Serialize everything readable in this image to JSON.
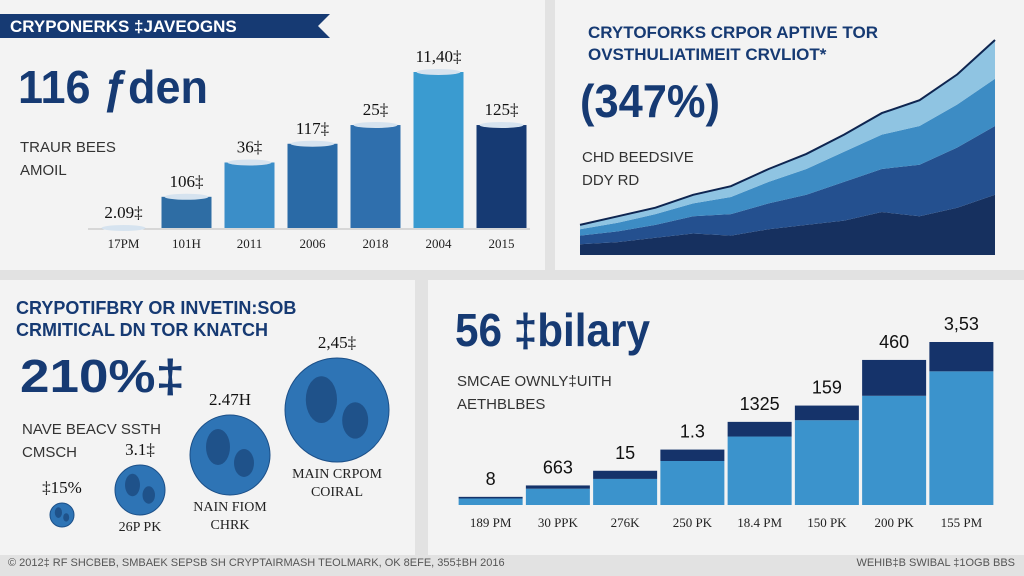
{
  "chart_data": [
    {
      "type": "bar",
      "title": [
        "CRYPONERKS ‡JAVEOGNS"
      ],
      "headline": "116 ƒden",
      "caption": [
        "TRAUR BEES",
        "AMOIL"
      ],
      "categories": [
        "17PM",
        "101H",
        "2011",
        "2006",
        "2018",
        "2004",
        "2015"
      ],
      "values": [
        0,
        20,
        42,
        54,
        66,
        100,
        66
      ],
      "annotations": [
        "2.09‡",
        "106‡",
        "36‡",
        "117‡",
        "25‡",
        "11,40‡",
        "125‡"
      ],
      "colors": [
        "#2e6da4",
        "#2e6da4",
        "#3b8ec8",
        "#2a6aa6",
        "#2f6fad",
        "#3a9bd0",
        "#163a73"
      ],
      "ylim": [
        0,
        100
      ]
    },
    {
      "type": "area",
      "title": [
        "CRYTOFORKS CRPOR APTIVE TOR",
        "OVSTHULIATIMEIT CRVLIOT*"
      ],
      "headline": "(347%)",
      "caption": [
        "CHD BEEDSIVE",
        "DDY RD"
      ],
      "series": [
        {
          "color": "#16305f",
          "values": [
            5,
            6,
            8,
            10,
            9,
            12,
            14,
            16,
            20,
            18,
            22,
            28
          ]
        },
        {
          "color": "#24508f",
          "values": [
            4,
            5,
            6,
            8,
            10,
            12,
            14,
            18,
            20,
            24,
            28,
            32
          ]
        },
        {
          "color": "#3d8cc4",
          "values": [
            3,
            4,
            5,
            6,
            8,
            10,
            12,
            14,
            16,
            18,
            20,
            22
          ]
        },
        {
          "color": "#8fc4e2",
          "values": [
            2,
            3,
            3,
            4,
            5,
            6,
            7,
            8,
            10,
            12,
            14,
            18
          ]
        }
      ],
      "ylim": [
        0,
        100
      ]
    },
    {
      "type": "bubble",
      "title": [
        "CRYPOTIFBRY OR INVETIN:SOB",
        "CRMITICAL DN TOR KNATCH"
      ],
      "headline": "210%‡",
      "caption": [
        "NAVE BEACV SSTH",
        "CMSCH"
      ],
      "values": [
        12,
        25,
        40,
        52
      ],
      "annotations": [
        "‡15%",
        "3.1‡",
        "2.47H",
        "2,45‡"
      ],
      "captions": [
        null,
        [
          "26P PK"
        ],
        [
          "NAIN FIOM",
          "CHRK"
        ],
        [
          "MAIN CRPOM",
          "COIRAL"
        ]
      ],
      "color": "#2e74b5"
    },
    {
      "type": "stacked_bar",
      "headline": "56 ‡bilary",
      "caption": [
        "SMCAE OWNLY‡UITH",
        "AETHBLBES"
      ],
      "categories": [
        "189 PM",
        "30 PPK",
        "276K",
        "250 PK",
        "18.4 PM",
        "150 PK",
        "200 PK",
        "155 PM"
      ],
      "series": [
        {
          "color": "#3b93cc",
          "values": [
            4,
            10,
            16,
            27,
            42,
            52,
            67,
            82
          ]
        },
        {
          "color": "#15336a",
          "values": [
            1,
            2,
            5,
            7,
            9,
            9,
            22,
            18
          ]
        }
      ],
      "annotations": [
        "8",
        "663",
        "15",
        "1.3",
        "1325",
        "159",
        "460",
        "3,53"
      ],
      "ylim": [
        0,
        100
      ]
    }
  ],
  "footer": {
    "left": "© 2012‡ RF SHCBEB, SMBAEK SEPSB SH CRYPTAIRMASH TEOLMARK, OK 8EFE, 355‡BH 2016",
    "right": "WEHIB‡B SWIBAL ‡1OGB BBS"
  }
}
